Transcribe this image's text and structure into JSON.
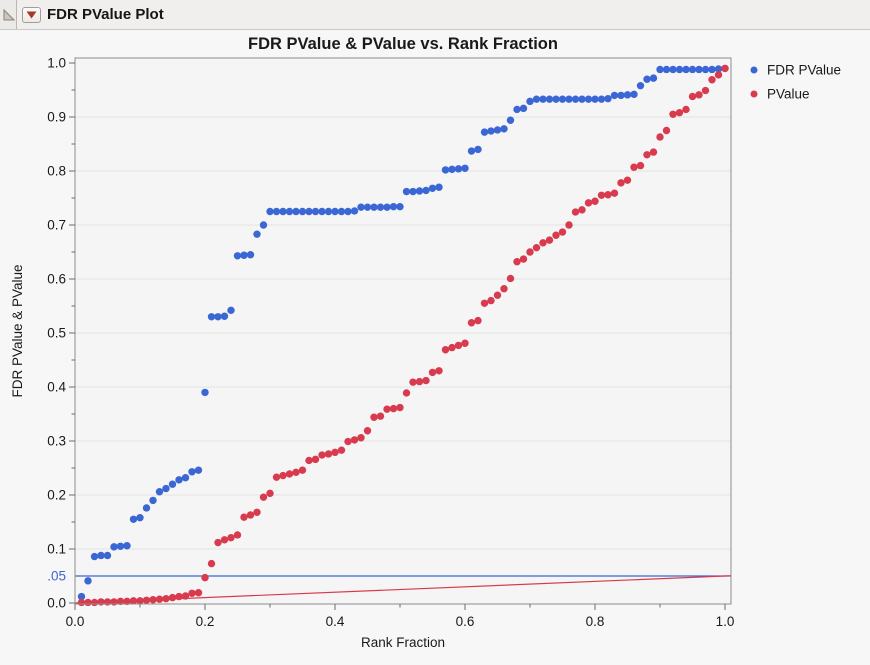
{
  "header": {
    "title": "FDR PValue Plot",
    "icons": [
      "disclosure-triangle",
      "red-triangle-menu"
    ]
  },
  "colors": {
    "fdr_blue": "#3b67d5",
    "pvalue_red": "#d83b4e",
    "ref_line_blue": "#3b67d5",
    "ref_line_red": "#d83b4e",
    "plot_bg": "#f5f5f5",
    "gridline": "#e2e2e2",
    "frame": "#8d8d8d",
    "tick": "#6b6b6b",
    "text": "#1a1a1a",
    "special_tick_text": "#3b67d5"
  },
  "chart_data": {
    "type": "scatter",
    "title": "FDR PValue & PValue vs. Rank Fraction",
    "xlabel": "Rank Fraction",
    "ylabel": "FDR PValue & PValue",
    "xlim": [
      0,
      1
    ],
    "ylim": [
      0,
      1
    ],
    "grid": "horizontal-only",
    "legend_position": "right-top-outside",
    "x_ticks": {
      "values": [
        0.0,
        0.2,
        0.4,
        0.6,
        0.8,
        1.0
      ],
      "labels": [
        "0.0",
        "0.2",
        "0.4",
        "0.6",
        "0.8",
        "1.0"
      ],
      "minor": [
        0.1,
        0.3,
        0.5,
        0.7,
        0.9
      ]
    },
    "y_ticks": {
      "values": [
        0.0,
        0.1,
        0.2,
        0.3,
        0.4,
        0.5,
        0.6,
        0.7,
        0.8,
        0.9,
        1.0
      ],
      "labels": [
        "0.0",
        "0.1",
        "0.2",
        "0.3",
        "0.4",
        "0.5",
        "0.6",
        "0.7",
        "0.8",
        "0.9",
        "1.0"
      ],
      "minor": [
        0.15,
        0.25,
        0.35,
        0.45,
        0.55,
        0.65,
        0.75,
        0.85,
        0.95
      ]
    },
    "special_y_tick": {
      "value": 0.05,
      "label": ".05",
      "color": "#3b67d5"
    },
    "y_gridlines": [
      0.1,
      0.2,
      0.3,
      0.4,
      0.5,
      0.6,
      0.7,
      0.8,
      0.9
    ],
    "ref_lines": [
      {
        "kind": "horizontal",
        "y": 0.05,
        "color": "#3b67d5"
      },
      {
        "kind": "segment",
        "from": [
          0.0,
          0.0
        ],
        "to": [
          1.0,
          0.05
        ],
        "color": "#d83b4e"
      }
    ],
    "legend": [
      {
        "label": "FDR PValue",
        "color": "#3b67d5"
      },
      {
        "label": "PValue",
        "color": "#d83b4e"
      }
    ],
    "x": [
      0.01,
      0.02,
      0.03,
      0.04,
      0.05,
      0.06,
      0.07,
      0.08,
      0.09,
      0.1,
      0.11,
      0.12,
      0.13,
      0.14,
      0.15,
      0.16,
      0.17,
      0.18,
      0.19,
      0.2,
      0.21,
      0.22,
      0.23,
      0.24,
      0.25,
      0.26,
      0.27,
      0.28,
      0.29,
      0.3,
      0.31,
      0.32,
      0.33,
      0.34,
      0.35,
      0.36,
      0.37,
      0.38,
      0.39,
      0.4,
      0.41,
      0.42,
      0.43,
      0.44,
      0.45,
      0.46,
      0.47,
      0.48,
      0.49,
      0.5,
      0.51,
      0.52,
      0.53,
      0.54,
      0.55,
      0.56,
      0.57,
      0.58,
      0.59,
      0.6,
      0.61,
      0.62,
      0.63,
      0.64,
      0.65,
      0.66,
      0.67,
      0.68,
      0.69,
      0.7,
      0.71,
      0.72,
      0.73,
      0.74,
      0.75,
      0.76,
      0.77,
      0.78,
      0.79,
      0.8,
      0.81,
      0.82,
      0.83,
      0.84,
      0.85,
      0.86,
      0.87,
      0.88,
      0.89,
      0.9,
      0.91,
      0.92,
      0.93,
      0.94,
      0.95,
      0.96,
      0.97,
      0.98,
      0.99,
      1.0
    ],
    "series": [
      {
        "name": "FDR PValue",
        "color": "#3b67d5",
        "y": [
          0.012,
          0.041,
          0.086,
          0.088,
          0.088,
          0.104,
          0.105,
          0.106,
          0.155,
          0.158,
          0.176,
          0.19,
          0.206,
          0.212,
          0.22,
          0.228,
          0.232,
          0.243,
          0.246,
          0.39,
          0.53,
          0.53,
          0.531,
          0.542,
          0.643,
          0.644,
          0.645,
          0.683,
          0.7,
          0.725,
          0.725,
          0.725,
          0.725,
          0.725,
          0.725,
          0.725,
          0.725,
          0.725,
          0.725,
          0.725,
          0.725,
          0.725,
          0.726,
          0.733,
          0.733,
          0.733,
          0.733,
          0.733,
          0.734,
          0.734,
          0.762,
          0.762,
          0.763,
          0.764,
          0.768,
          0.77,
          0.802,
          0.803,
          0.804,
          0.805,
          0.837,
          0.84,
          0.872,
          0.874,
          0.876,
          0.878,
          0.894,
          0.914,
          0.916,
          0.929,
          0.933,
          0.933,
          0.933,
          0.933,
          0.933,
          0.933,
          0.933,
          0.933,
          0.933,
          0.933,
          0.933,
          0.934,
          0.94,
          0.94,
          0.941,
          0.942,
          0.958,
          0.97,
          0.972,
          0.988,
          0.988,
          0.988,
          0.988,
          0.988,
          0.988,
          0.988,
          0.988,
          0.988,
          0.989,
          0.99
        ]
      },
      {
        "name": "PValue",
        "color": "#d83b4e",
        "y": [
          0.001,
          0.001,
          0.001,
          0.002,
          0.002,
          0.002,
          0.003,
          0.003,
          0.004,
          0.004,
          0.005,
          0.006,
          0.007,
          0.008,
          0.01,
          0.012,
          0.013,
          0.018,
          0.019,
          0.047,
          0.073,
          0.112,
          0.117,
          0.121,
          0.126,
          0.159,
          0.163,
          0.168,
          0.196,
          0.203,
          0.233,
          0.236,
          0.239,
          0.242,
          0.246,
          0.264,
          0.266,
          0.274,
          0.276,
          0.279,
          0.283,
          0.299,
          0.302,
          0.306,
          0.319,
          0.344,
          0.346,
          0.359,
          0.36,
          0.362,
          0.389,
          0.409,
          0.41,
          0.412,
          0.427,
          0.43,
          0.469,
          0.473,
          0.477,
          0.481,
          0.519,
          0.523,
          0.555,
          0.56,
          0.57,
          0.582,
          0.601,
          0.632,
          0.637,
          0.65,
          0.658,
          0.667,
          0.672,
          0.681,
          0.687,
          0.7,
          0.724,
          0.728,
          0.741,
          0.744,
          0.755,
          0.756,
          0.759,
          0.778,
          0.783,
          0.807,
          0.81,
          0.83,
          0.835,
          0.863,
          0.875,
          0.905,
          0.908,
          0.914,
          0.938,
          0.941,
          0.949,
          0.969,
          0.978,
          0.99
        ]
      }
    ]
  }
}
